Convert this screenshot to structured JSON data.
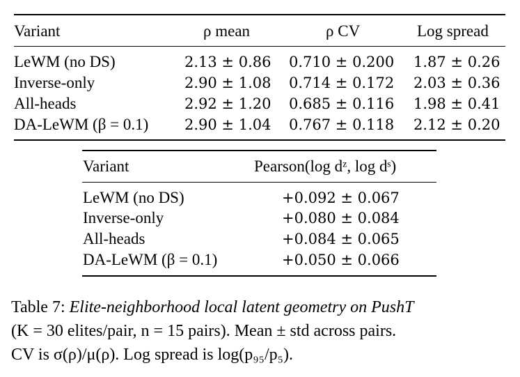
{
  "table1": {
    "headers": [
      "Variant",
      "ρ mean",
      "ρ CV",
      "Log spread"
    ],
    "rows": [
      [
        "LeWM (no DS)",
        "2.13 ± 0.86",
        "0.710 ± 0.200",
        "1.87 ± 0.26"
      ],
      [
        "Inverse-only",
        "2.90 ± 1.08",
        "0.714 ± 0.172",
        "2.03 ± 0.36"
      ],
      [
        "All-heads",
        "2.92 ± 1.20",
        "0.685 ± 0.116",
        "1.98 ± 0.41"
      ],
      [
        "DA-LeWM (β = 0.1)",
        "2.90 ± 1.04",
        "0.767 ± 0.118",
        "2.12 ± 0.20"
      ]
    ]
  },
  "table2": {
    "headers": [
      "Variant",
      "Pearson(log dᶻ, log dˢ)"
    ],
    "rows": [
      [
        "LeWM (no DS)",
        "+0.092 ± 0.067"
      ],
      [
        "Inverse-only",
        "+0.080 ± 0.084"
      ],
      [
        "All-heads",
        "+0.084 ± 0.065"
      ],
      [
        "DA-LeWM (β = 0.1)",
        "+0.050 ± 0.066"
      ]
    ]
  },
  "caption": {
    "label": "Table 7:",
    "title": "Elite-neighborhood local latent geometry on PushT",
    "line2": "(K = 30 elites/pair, n = 15 pairs). Mean ± std across pairs.",
    "line3": "CV is σ(ρ)/μ(ρ). Log spread is log(p₉₅/p₅)."
  }
}
